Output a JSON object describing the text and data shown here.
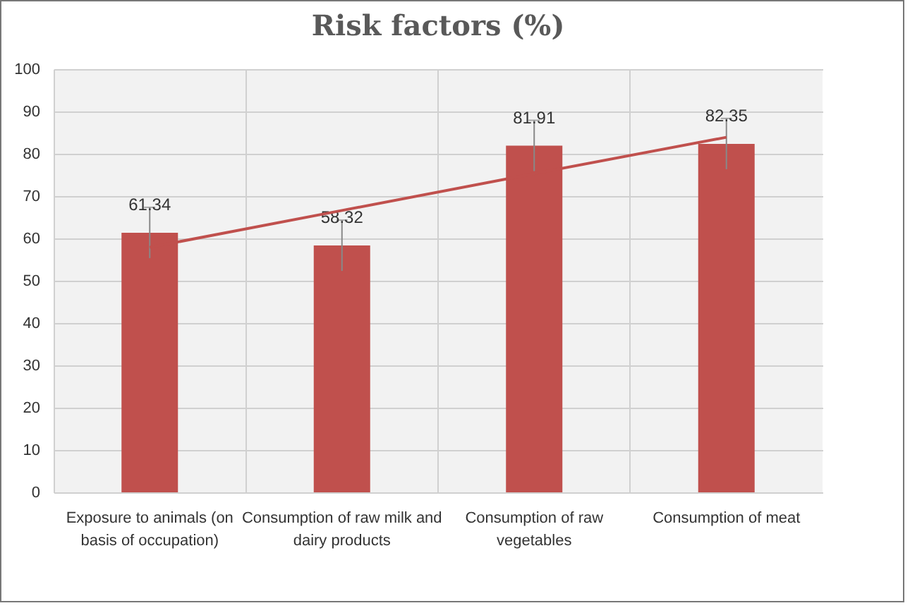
{
  "chart_data": {
    "type": "bar",
    "title": "Risk factors (%)",
    "categories": [
      "Exposure to animals (on basis of occupation)",
      "Consumption of raw milk and dairy products",
      "Consumption of raw vegetables",
      "Consumption of  meat"
    ],
    "series": [
      {
        "color": "#c0504d",
        "values": [
          61.34,
          58.32,
          81.91,
          82.35
        ],
        "errors": [
          6,
          6,
          6,
          6
        ],
        "value_labels": [
          "61.34",
          "58.32",
          "81.91",
          "82.35"
        ]
      },
      {
        "type": "line",
        "color": "#c0504d",
        "values": [
          57.9,
          66.6,
          75.3,
          83.9
        ]
      }
    ],
    "ylim": [
      0,
      100
    ],
    "yticks": [
      0,
      10,
      20,
      30,
      40,
      50,
      60,
      70,
      80,
      90,
      100
    ],
    "grid": true
  }
}
